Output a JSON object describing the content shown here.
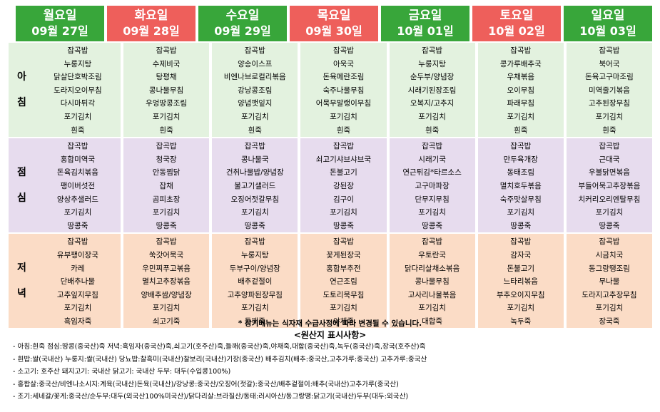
{
  "days": [
    {
      "day": "월요일",
      "date": "09월 27일",
      "color": "#38a63a"
    },
    {
      "day": "화요일",
      "date": "09월 28일",
      "color": "#ee5f5b"
    },
    {
      "day": "수요일",
      "date": "09월 29일",
      "color": "#38a63a"
    },
    {
      "day": "목요일",
      "date": "09월 30일",
      "color": "#ee5f5b"
    },
    {
      "day": "금요일",
      "date": "10월 01일",
      "color": "#38a63a"
    },
    {
      "day": "토요일",
      "date": "10월 02일",
      "color": "#ee5f5b"
    },
    {
      "day": "일요일",
      "date": "10월 03일",
      "color": "#38a63a"
    }
  ],
  "meals": [
    {
      "label": "아\n침",
      "color": "#e3f2df",
      "rows": 7,
      "menus": [
        [
          "잡곡밥",
          "누룽지탕",
          "닭살단호박조림",
          "도라지오이무침",
          "다시마튀각",
          "포기김치",
          "흰죽"
        ],
        [
          "잡곡밥",
          "수제비국",
          "탕평채",
          "콩나물무침",
          "우엉땅콩조림",
          "포기김치",
          "흰죽"
        ],
        [
          "잡곡밥",
          "양송이스프",
          "비엔나브로컬리볶음",
          "강낭콩조림",
          "양념깻잎지",
          "포기김치",
          "흰죽"
        ],
        [
          "잡곡밥",
          "아욱국",
          "돈육메란조림",
          "숙주나물무침",
          "어묵무말랭이무침",
          "포기김치",
          "흰죽"
        ],
        [
          "잡곡밥",
          "누룽지탕",
          "순두부/양념장",
          "시래기된장조림",
          "오복지/고추지",
          "포기김치",
          "흰죽"
        ],
        [
          "잡곡밥",
          "콩가루배추국",
          "우채볶음",
          "오이무침",
          "파래무침",
          "포기김치",
          "흰죽"
        ],
        [
          "잡곡밥",
          "북어국",
          "돈육고구마조림",
          "미역줄기볶음",
          "고추된장무침",
          "포기김치",
          "흰죽"
        ]
      ]
    },
    {
      "label": "점\n심",
      "color": "#e7dcee",
      "rows": 7,
      "menus": [
        [
          "잡곡밥",
          "홍합미역국",
          "돈육김치볶음",
          "팽이버섯전",
          "양상추샐러드",
          "포기김치",
          "땅콩죽"
        ],
        [
          "잡곡밥",
          "청국장",
          "안동찜닭",
          "잡채",
          "곰피초장",
          "포기김치",
          "땅콩죽"
        ],
        [
          "잡곡밥",
          "콩나물국",
          "건취나물밥/양념장",
          "불고기샐러드",
          "오징어젓갈무침",
          "포기김치",
          "땅콩죽"
        ],
        [
          "잡곡밥",
          "쇠고기샤브샤브국",
          "돈불고기",
          "강된장",
          "김구이",
          "포기김치",
          "땅콩죽"
        ],
        [
          "잡곡밥",
          "시래기국",
          "연근튀김*타르소스",
          "고구마파장",
          "단무지무침",
          "포기김치",
          "땅콩죽"
        ],
        [
          "잡곡밥",
          "만두육개장",
          "동태조림",
          "멸치호두볶음",
          "숙주맛살무침",
          "포기김치",
          "땅콩죽"
        ],
        [
          "잡곡밥",
          "근대국",
          "우불닭면볶음",
          "부들어묵고추장볶음",
          "치커리오리엔탈무침",
          "포기김치",
          "땅콩죽"
        ]
      ]
    },
    {
      "label": "저\n녁",
      "color": "#fbdcc6",
      "rows": 7,
      "menus": [
        [
          "잡곡밥",
          "유부팽이장국",
          "카레",
          "단배추나물",
          "고추잎지무침",
          "포기김치",
          "흑임자죽"
        ],
        [
          "잡곡밥",
          "쑥갓어묵국",
          "우민찌푸고볶음",
          "멸치고추장볶음",
          "양배추쌈/양념장",
          "포기김치",
          "쇠고기죽"
        ],
        [
          "잡곡밥",
          "누룽지탕",
          "두부구이/양념장",
          "배추겉절이",
          "고추양파된장무침",
          "포기김치",
          "들깨죽"
        ],
        [
          "잡곡밥",
          "꽃게된장국",
          "홍합부추전",
          "연근조림",
          "도토리묵무침",
          "포기김치",
          "야채죽"
        ],
        [
          "잡곡밥",
          "우토란국",
          "닭다리살채소볶음",
          "콩나물무침",
          "고사리나물볶음",
          "포기김치",
          "대합죽"
        ],
        [
          "잡곡밥",
          "감자국",
          "돈불고기",
          "느타리볶음",
          "부추오이지무침",
          "포기김치",
          "녹두죽"
        ],
        [
          "잡곡밥",
          "시금치국",
          "동그랑땡조림",
          "무나물",
          "도라지고추장무침",
          "포기김치",
          "장국죽"
        ]
      ]
    }
  ],
  "footer": {
    "notice": "* 상기메뉴는 식자재 수급사정에 따라 변경될 수 있습니다.",
    "origin_title": "<원산지 표시사항>",
    "origin_lines": [
      "- 아침:흰죽 점심:땅콩(중국산)죽 저녁:흑임자(중국산)죽,쇠고기(호주산)죽,들깨(중국산)죽,야채죽,대합(중국산)죽,녹두(중국산)죽,장국(호주산)죽",
      "- 흰밥:쌀(국내산) 누룽지:쌀(국내산) 당뇨밥:찰흑미(국내산)찰보리(국내산)기장(중국산) 배추김치(배추:중국산,고추가루:중국산) 고추가루:중국산",
      "- 소고기: 호주산 돼지고기: 국내산 닭고기: 국내산 두부: 대두(수입콩100%)",
      "- 홍합살:중국산/비엔나소시지:계육(국내산)돈육(국내산)/강낭콩:중국산/오징어(젓갈):중국산/배추겉절이:배추(국내산)고추가루(중국산)",
      "- 조기:세네갈/꽃게:중국산/순두부:대두(외국산100%미국산)/닭다리살:브라질산/동태:러시아산/동그랑땡:닭고기(국내산)두부(대두:외국산)"
    ]
  }
}
